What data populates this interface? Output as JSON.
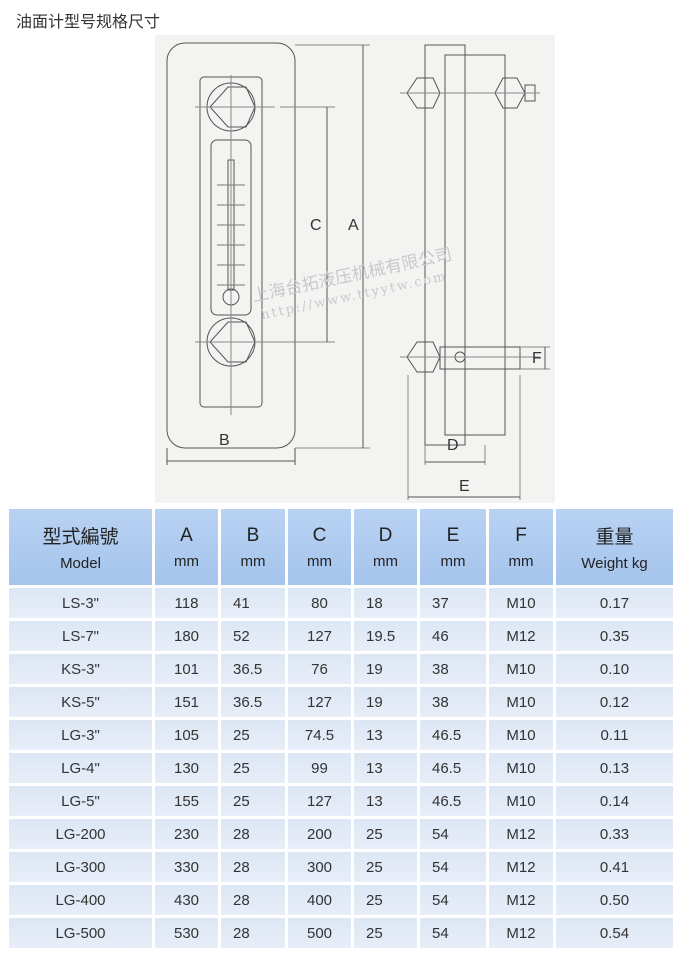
{
  "title": "油面计型号规格尺寸",
  "drawing": {
    "labels": {
      "A": "A",
      "B": "B",
      "C": "C",
      "D": "D",
      "E": "E",
      "F": "F"
    },
    "watermark_company": "上海台拓液压机械有限公司",
    "watermark_url": "http://www.ttyytw.com"
  },
  "table": {
    "headers": [
      {
        "title": "型式編號",
        "unit": "Model"
      },
      {
        "title": "A",
        "unit": "mm"
      },
      {
        "title": "B",
        "unit": "mm"
      },
      {
        "title": "C",
        "unit": "mm"
      },
      {
        "title": "D",
        "unit": "mm"
      },
      {
        "title": "E",
        "unit": "mm"
      },
      {
        "title": "F",
        "unit": "mm"
      },
      {
        "title": "重量",
        "unit": "Weight kg"
      }
    ],
    "rows": [
      [
        "LS-3\"",
        "118",
        "41",
        "80",
        "18",
        "37",
        "M10",
        "0.17"
      ],
      [
        "LS-7\"",
        "180",
        "52",
        "127",
        "19.5",
        "46",
        "M12",
        "0.35"
      ],
      [
        "KS-3\"",
        "101",
        "36.5",
        "76",
        "19",
        "38",
        "M10",
        "0.10"
      ],
      [
        "KS-5\"",
        "151",
        "36.5",
        "127",
        "19",
        "38",
        "M10",
        "0.12"
      ],
      [
        "LG-3\"",
        "105",
        "25",
        "74.5",
        "13",
        "46.5",
        "M10",
        "0.11"
      ],
      [
        "LG-4\"",
        "130",
        "25",
        "99",
        "13",
        "46.5",
        "M10",
        "0.13"
      ],
      [
        "LG-5\"",
        "155",
        "25",
        "127",
        "13",
        "46.5",
        "M10",
        "0.14"
      ],
      [
        "LG-200",
        "230",
        "28",
        "200",
        "25",
        "54",
        "M12",
        "0.33"
      ],
      [
        "LG-300",
        "330",
        "28",
        "300",
        "25",
        "54",
        "M12",
        "0.41"
      ],
      [
        "LG-400",
        "430",
        "28",
        "400",
        "25",
        "54",
        "M12",
        "0.50"
      ],
      [
        "LG-500",
        "530",
        "28",
        "500",
        "25",
        "54",
        "M12",
        "0.54"
      ]
    ]
  }
}
